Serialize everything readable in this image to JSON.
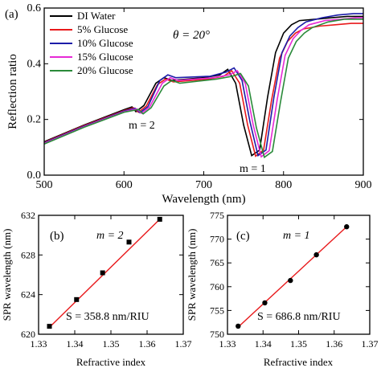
{
  "chart_data": [
    {
      "panel": "(a)",
      "type": "line",
      "xlabel": "Wavelength (nm)",
      "ylabel": "Reflection ratio",
      "xlim": [
        500,
        900
      ],
      "ylim": [
        0,
        0.6
      ],
      "xticks": [
        "500",
        "600",
        "700",
        "800",
        "900"
      ],
      "yticks": [
        "0.0",
        "0.2",
        "0.4",
        "0.6"
      ],
      "legend_position": "top-left",
      "annotations": {
        "theta": "θ = 20°",
        "m2": "m = 2",
        "m1": "m = 1"
      },
      "series": [
        {
          "name": "DI Water",
          "color": "#000000",
          "x": [
            500,
            550,
            600,
            610,
            615,
            625,
            640,
            650,
            660,
            700,
            720,
            730,
            740,
            750,
            760,
            770,
            780,
            790,
            800,
            810,
            820,
            840,
            860,
            880,
            900
          ],
          "y": [
            0.12,
            0.18,
            0.235,
            0.245,
            0.228,
            0.25,
            0.33,
            0.35,
            0.34,
            0.35,
            0.36,
            0.38,
            0.33,
            0.18,
            0.07,
            0.09,
            0.28,
            0.44,
            0.51,
            0.54,
            0.555,
            0.56,
            0.565,
            0.57,
            0.57
          ]
        },
        {
          "name": "5% Glucose",
          "color": "#e8191b",
          "x": [
            500,
            550,
            600,
            612,
            618,
            628,
            642,
            652,
            662,
            705,
            725,
            735,
            745,
            755,
            765,
            775,
            785,
            795,
            805,
            815,
            825,
            845,
            865,
            885,
            900
          ],
          "y": [
            0.118,
            0.178,
            0.232,
            0.242,
            0.226,
            0.248,
            0.325,
            0.345,
            0.335,
            0.345,
            0.355,
            0.375,
            0.33,
            0.18,
            0.068,
            0.09,
            0.27,
            0.42,
            0.48,
            0.51,
            0.525,
            0.535,
            0.54,
            0.545,
            0.545
          ]
        },
        {
          "name": "10% Glucose",
          "color": "#1c1ca8",
          "x": [
            500,
            550,
            600,
            614,
            620,
            630,
            645,
            655,
            665,
            708,
            728,
            738,
            748,
            758,
            768,
            778,
            788,
            798,
            808,
            818,
            828,
            848,
            868,
            888,
            900
          ],
          "y": [
            0.116,
            0.176,
            0.23,
            0.24,
            0.224,
            0.246,
            0.34,
            0.36,
            0.35,
            0.355,
            0.37,
            0.385,
            0.34,
            0.19,
            0.07,
            0.09,
            0.28,
            0.44,
            0.5,
            0.53,
            0.55,
            0.565,
            0.575,
            0.58,
            0.58
          ]
        },
        {
          "name": "15% Glucose",
          "color": "#e62ad6",
          "x": [
            500,
            550,
            600,
            616,
            622,
            632,
            648,
            658,
            668,
            712,
            732,
            742,
            752,
            762,
            772,
            782,
            792,
            802,
            812,
            822,
            832,
            852,
            872,
            892,
            900
          ],
          "y": [
            0.114,
            0.174,
            0.228,
            0.238,
            0.222,
            0.244,
            0.33,
            0.35,
            0.34,
            0.35,
            0.36,
            0.375,
            0.33,
            0.18,
            0.066,
            0.088,
            0.27,
            0.43,
            0.49,
            0.52,
            0.54,
            0.555,
            0.56,
            0.565,
            0.565
          ]
        },
        {
          "name": "20% Glucose",
          "color": "#2a8a3a",
          "x": [
            500,
            550,
            600,
            618,
            624,
            634,
            650,
            660,
            670,
            716,
            736,
            746,
            756,
            766,
            776,
            786,
            796,
            806,
            816,
            826,
            836,
            856,
            876,
            896,
            900
          ],
          "y": [
            0.112,
            0.172,
            0.226,
            0.236,
            0.22,
            0.242,
            0.32,
            0.34,
            0.33,
            0.345,
            0.355,
            0.365,
            0.32,
            0.17,
            0.064,
            0.085,
            0.26,
            0.42,
            0.48,
            0.51,
            0.53,
            0.55,
            0.56,
            0.56,
            0.56
          ]
        }
      ]
    },
    {
      "panel": "(b)",
      "type": "scatter",
      "xlabel": "Refractive index",
      "ylabel": "SPR wavelength (nm)",
      "xlim": [
        1.33,
        1.37
      ],
      "ylim": [
        620,
        632
      ],
      "xticks": [
        "1.33",
        "1.34",
        "1.35",
        "1.36",
        "1.37"
      ],
      "yticks": [
        "620",
        "624",
        "628",
        "632"
      ],
      "annotations": {
        "order": "m = 2",
        "sensitivity": "S = 358.8 nm/RIU"
      },
      "fit_color": "#e8191b",
      "x": [
        1.333,
        1.3405,
        1.3477,
        1.355,
        1.3635
      ],
      "y": [
        620.8,
        623.5,
        626.2,
        629.3,
        631.6
      ],
      "fit": {
        "x": [
          1.333,
          1.3635
        ],
        "y": [
          620.7,
          631.6
        ]
      }
    },
    {
      "panel": "(c)",
      "type": "scatter",
      "xlabel": "Refractive index",
      "ylabel": "SPR wavelength (nm)",
      "xlim": [
        1.33,
        1.37
      ],
      "ylim": [
        750,
        775
      ],
      "xticks": [
        "1.33",
        "1.34",
        "1.35",
        "1.36",
        "1.37"
      ],
      "yticks": [
        "750",
        "755",
        "760",
        "765",
        "770",
        "775"
      ],
      "annotations": {
        "order": "m = 1",
        "sensitivity": "S = 686.8 nm/RIU"
      },
      "fit_color": "#e8191b",
      "x": [
        1.333,
        1.3405,
        1.3477,
        1.355,
        1.3635
      ],
      "y": [
        751.7,
        756.6,
        761.3,
        766.7,
        772.6
      ],
      "fit": {
        "x": [
          1.333,
          1.3635
        ],
        "y": [
          751.5,
          772.6
        ]
      }
    }
  ]
}
